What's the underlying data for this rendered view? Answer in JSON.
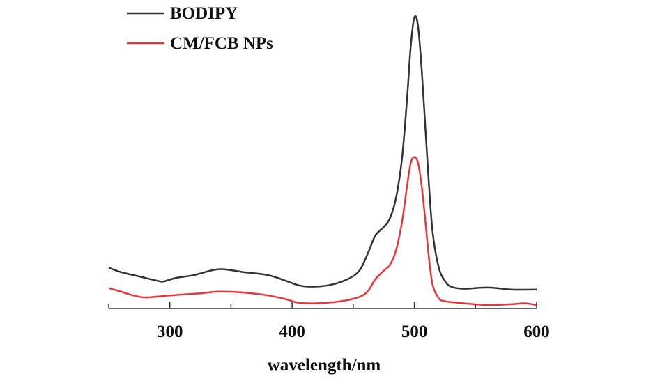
{
  "chart_data": {
    "type": "line",
    "title": "",
    "xlabel": "wavelength/nm",
    "ylabel": "",
    "xlim": [
      250,
      600
    ],
    "ylim": [
      0,
      1.05
    ],
    "xticks": [
      300,
      400,
      500,
      600
    ],
    "xtick_labels": [
      "300",
      "400",
      "500",
      "600"
    ],
    "grid": false,
    "legend_position": "top-left",
    "series": [
      {
        "name": "BODIPY",
        "color": "#333333",
        "x": [
          250,
          260,
          275,
          290,
          295,
          305,
          320,
          340,
          360,
          380,
          395,
          405,
          415,
          430,
          445,
          455,
          462,
          468,
          475,
          480,
          485,
          490,
          494,
          497,
          500,
          503,
          506,
          509,
          512,
          515,
          520,
          525,
          530,
          540,
          560,
          580,
          600
        ],
        "y": [
          0.14,
          0.125,
          0.11,
          0.095,
          0.093,
          0.105,
          0.115,
          0.135,
          0.125,
          0.115,
          0.095,
          0.08,
          0.075,
          0.08,
          0.1,
          0.13,
          0.19,
          0.25,
          0.28,
          0.31,
          0.38,
          0.52,
          0.72,
          0.9,
          1.0,
          0.97,
          0.82,
          0.62,
          0.42,
          0.26,
          0.14,
          0.095,
          0.075,
          0.068,
          0.072,
          0.065,
          0.065
        ]
      },
      {
        "name": "CM/FCB NPs",
        "color": "#e8343a",
        "x": [
          250,
          260,
          270,
          280,
          295,
          310,
          325,
          340,
          360,
          380,
          395,
          405,
          420,
          440,
          455,
          462,
          468,
          475,
          480,
          485,
          490,
          494,
          497,
          500,
          503,
          506,
          509,
          512,
          515,
          520,
          525,
          540,
          560,
          580,
          590,
          600
        ],
        "y": [
          0.07,
          0.058,
          0.045,
          0.038,
          0.043,
          0.048,
          0.052,
          0.058,
          0.055,
          0.045,
          0.032,
          0.02,
          0.018,
          0.025,
          0.04,
          0.06,
          0.1,
          0.13,
          0.15,
          0.2,
          0.3,
          0.42,
          0.5,
          0.52,
          0.5,
          0.42,
          0.3,
          0.17,
          0.08,
          0.035,
          0.025,
          0.018,
          0.012,
          0.015,
          0.018,
          0.012
        ]
      }
    ]
  }
}
